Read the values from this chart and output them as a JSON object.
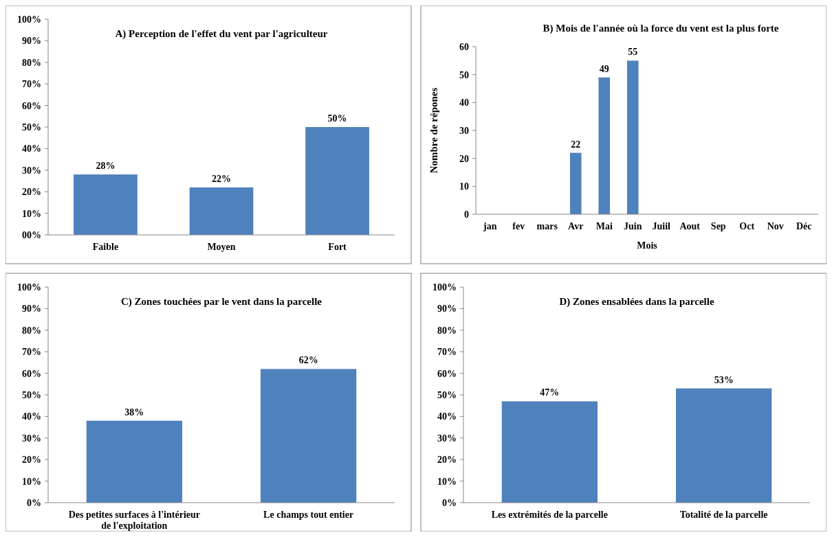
{
  "chart_data": [
    {
      "type": "bar",
      "title": "A) Perception de l'effet du vent par l'agriculteur",
      "categories": [
        "Faible",
        "Moyen",
        "Fort"
      ],
      "values": [
        28,
        22,
        50
      ],
      "value_labels": [
        "28%",
        "22%",
        "50%"
      ],
      "color": "#4f81bd",
      "ylim": [
        0,
        100
      ],
      "yticks": [
        {
          "value": 0,
          "label": "00%"
        },
        {
          "value": 10,
          "label": "10%"
        },
        {
          "value": 20,
          "label": "20%"
        },
        {
          "value": 30,
          "label": "30%"
        },
        {
          "value": 40,
          "label": "40%"
        },
        {
          "value": 50,
          "label": "50%"
        },
        {
          "value": 60,
          "label": "60%"
        },
        {
          "value": 70,
          "label": "70%"
        },
        {
          "value": 80,
          "label": "80%"
        },
        {
          "value": 90,
          "label": "90%"
        },
        {
          "value": 100,
          "label": "100%"
        }
      ],
      "grid": false
    },
    {
      "type": "bar",
      "title": "B) Mois de l'année où la force du vent est la plus forte",
      "xlabel": "Mois",
      "ylabel": "Nombre de répones",
      "categories": [
        "jan",
        "fev",
        "mars",
        "Avr",
        "Mai",
        "Juin",
        "Juiil",
        "Aout",
        "Sep",
        "Oct",
        "Nov",
        "Déc"
      ],
      "values": [
        null,
        null,
        null,
        22,
        49,
        55,
        null,
        null,
        null,
        null,
        null,
        null
      ],
      "data_labels": true,
      "color": "#4f81bd",
      "ylim": [
        0,
        60
      ],
      "yticks": [
        0,
        10,
        20,
        30,
        40,
        50,
        60
      ],
      "grid": false
    },
    {
      "type": "bar",
      "title": "C) Zones touchées par le vent dans la parcelle",
      "categories": [
        "Des petites surfaces à l'intérieur de l'exploitation",
        "Le champs tout entier"
      ],
      "values": [
        38,
        62
      ],
      "value_labels": [
        "38%",
        "62%"
      ],
      "color": "#4f81bd",
      "ylim": [
        0,
        100
      ],
      "yticks": [
        {
          "value": 0,
          "label": "0%"
        },
        {
          "value": 10,
          "label": "10%"
        },
        {
          "value": 20,
          "label": "20%"
        },
        {
          "value": 30,
          "label": "30%"
        },
        {
          "value": 40,
          "label": "40%"
        },
        {
          "value": 50,
          "label": "50%"
        },
        {
          "value": 60,
          "label": "60%"
        },
        {
          "value": 70,
          "label": "70%"
        },
        {
          "value": 80,
          "label": "80%"
        },
        {
          "value": 90,
          "label": "90%"
        },
        {
          "value": 100,
          "label": "100%"
        }
      ],
      "grid": false
    },
    {
      "type": "bar",
      "title": "D) Zones ensablées dans la parcelle",
      "categories": [
        "Les extrémités de la parcelle",
        "Totalité de la parcelle"
      ],
      "values": [
        47,
        53
      ],
      "value_labels": [
        "47%",
        "53%"
      ],
      "color": "#4f81bd",
      "ylim": [
        0,
        100
      ],
      "yticks": [
        {
          "value": 0,
          "label": "0%"
        },
        {
          "value": 10,
          "label": "10%"
        },
        {
          "value": 20,
          "label": "20%"
        },
        {
          "value": 30,
          "label": "30%"
        },
        {
          "value": 40,
          "label": "40%"
        },
        {
          "value": 50,
          "label": "50%"
        },
        {
          "value": 60,
          "label": "60%"
        },
        {
          "value": 70,
          "label": "70%"
        },
        {
          "value": 80,
          "label": "80%"
        },
        {
          "value": 90,
          "label": "90%"
        },
        {
          "value": 100,
          "label": "100%"
        }
      ],
      "grid": false
    }
  ]
}
